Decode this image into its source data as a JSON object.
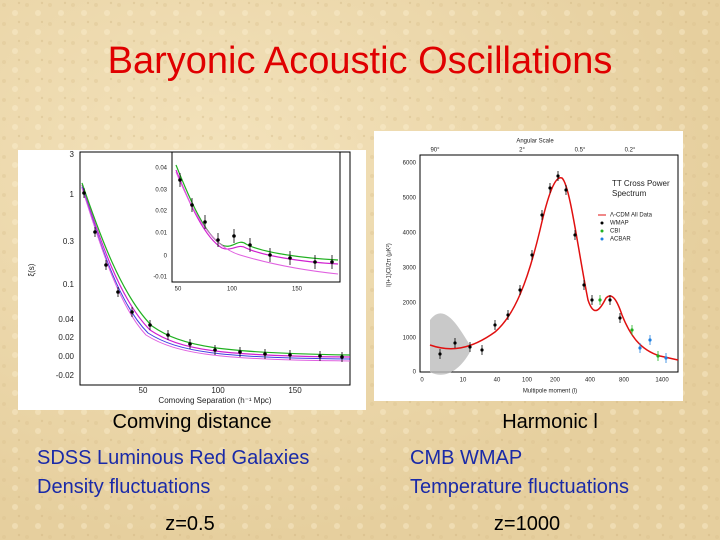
{
  "title": "Baryonic Acoustic Oscillations",
  "left_panel": {
    "caption": "Comving distance",
    "description": [
      "SDSS Luminous Red Galaxies",
      "Density fluctuations"
    ],
    "redshift": "z=0.5",
    "plot": {
      "x_label": "Comoving Separation (h⁻¹ Mpc)",
      "y_label": "ξ(s)",
      "yticks": [
        "3",
        "1",
        "0.3",
        "0.1",
        "0.04",
        "0.02",
        "0.00",
        "-0.02"
      ],
      "xticks": [
        "50",
        "100",
        "150"
      ],
      "inset": {
        "yticks": [
          "0.04",
          "0.03",
          "0.02",
          "0.01",
          "0",
          "-0.01"
        ],
        "xticks": [
          "50",
          "100",
          "150"
        ]
      }
    }
  },
  "right_panel": {
    "caption": "Harmonic l",
    "description": [
      "CMB WMAP",
      "Temperature fluctuations"
    ],
    "redshift": "z=1000",
    "plot": {
      "top_label": "Angular Scale",
      "top_ticks": [
        "90°",
        "2°",
        "0.5°",
        "0.2°"
      ],
      "y_label": "l(l+1)Cl/2π (μK²)",
      "yticks": [
        "6000",
        "5000",
        "4000",
        "3000",
        "2000",
        "1000",
        "0"
      ],
      "x_label": "Multipole moment (l)",
      "xticks": [
        "0",
        "10",
        "40",
        "100",
        "200",
        "400",
        "800",
        "1400"
      ],
      "legend_title": [
        "TT Cross Power",
        "Spectrum"
      ],
      "legend": [
        "Λ-CDM All Data",
        "WMAP",
        "CBI",
        "ACBAR"
      ]
    }
  }
}
